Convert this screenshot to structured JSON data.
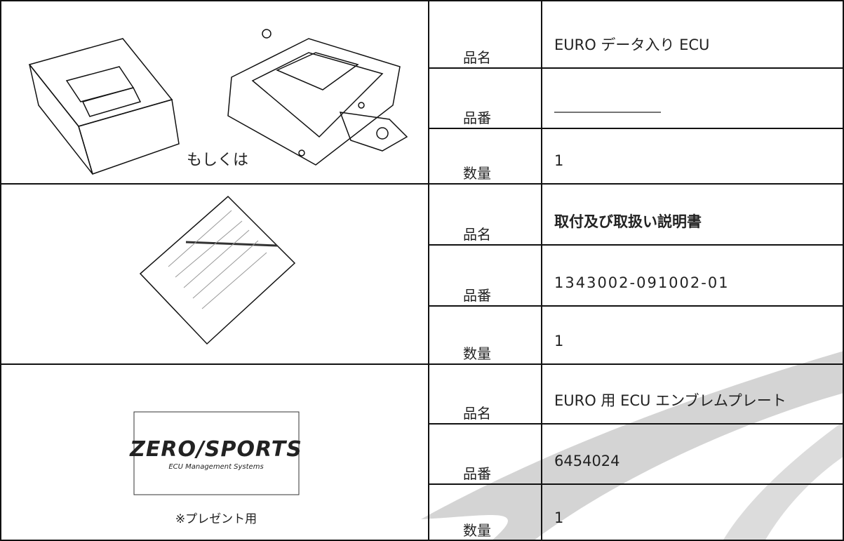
{
  "table": {
    "rows": [
      {
        "caption": "もしくは",
        "items": [
          {
            "label": "品名",
            "value": "EURO データ入り ECU"
          },
          {
            "label": "品番"
          },
          {
            "label": "数量",
            "value": "1"
          }
        ]
      },
      {
        "items": [
          {
            "label": "品名",
            "value": "取付及び取扱い説明書"
          },
          {
            "label": "品番",
            "value": "1343002-091002-01"
          },
          {
            "label": "数量",
            "value": "1"
          }
        ]
      },
      {
        "caption": "※プレゼント用",
        "plate": {
          "logo": "ZERO/SPORTS",
          "tagline": "ECU Management Systems"
        },
        "items": [
          {
            "label": "品名",
            "value": "EURO 用 ECU エンブレムプレート"
          },
          {
            "label": "品番",
            "value": "6454024"
          },
          {
            "label": "数量",
            "value": "1"
          }
        ]
      }
    ]
  }
}
